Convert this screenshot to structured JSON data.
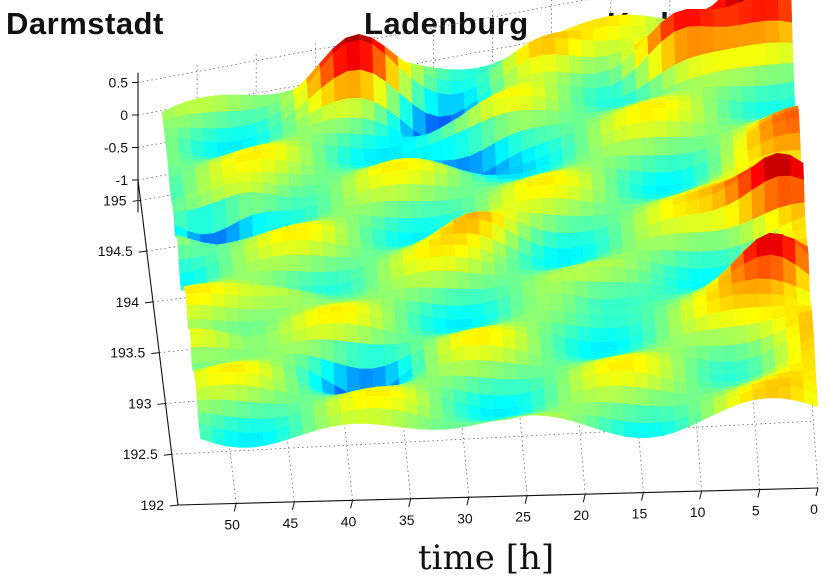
{
  "chart_data": {
    "type": "surface",
    "stations": [
      "Darmstadt",
      "Ladenburg",
      "Karlsruhe"
    ],
    "xlabel": "time [h]",
    "x_ticks": [
      50,
      45,
      40,
      35,
      30,
      25,
      20,
      15,
      10,
      5,
      0
    ],
    "xlim": [
      0,
      55
    ],
    "y_ticks": [
      192,
      192.5,
      193,
      193.5,
      194,
      194.5,
      195
    ],
    "ylim": [
      192,
      195.2
    ],
    "z_ticks": [
      0.5,
      0,
      -0.5,
      -1
    ],
    "zlim": [
      -1.5,
      0.5
    ],
    "grid": true,
    "colormap": "jet",
    "peaks": [
      {
        "t": 37,
        "y": 195.05,
        "dz": 0.7
      },
      {
        "t": 22,
        "y": 195.02,
        "dz": 0.45
      },
      {
        "t": 2,
        "y": 195.0,
        "dz": 0.9
      },
      {
        "t": 30,
        "y": 194.85,
        "dz": -0.6
      },
      {
        "t": 10,
        "y": 194.85,
        "dz": 0.8
      },
      {
        "t": 28,
        "y": 194.45,
        "dz": -0.55
      },
      {
        "t": 50,
        "y": 194.1,
        "dz": -0.7
      },
      {
        "t": 47,
        "y": 194.2,
        "dz": 0.35
      },
      {
        "t": 28,
        "y": 193.65,
        "dz": 0.35
      },
      {
        "t": 2,
        "y": 193.6,
        "dz": 0.8
      },
      {
        "t": 44,
        "y": 193.3,
        "dz": 0.3
      },
      {
        "t": 18,
        "y": 193.1,
        "dz": -0.35
      },
      {
        "t": 3,
        "y": 193.05,
        "dz": 0.7
      },
      {
        "t": 52,
        "y": 192.9,
        "dz": 0.5
      },
      {
        "t": 38,
        "y": 192.65,
        "dz": -0.4
      }
    ]
  }
}
